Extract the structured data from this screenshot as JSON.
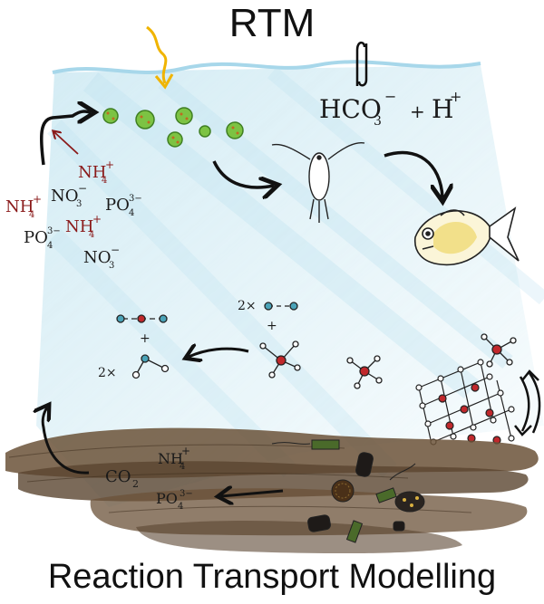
{
  "title": "RTM",
  "subtitle": "Reaction Transport Modelling",
  "labels": {
    "hco3": "HCO",
    "hco3_sub": "3",
    "hco3_sup": "−",
    "plus": "+",
    "h": "H",
    "h_sup": "+",
    "nh4": "NH",
    "sub4": "4",
    "sup_plus": "+",
    "no3": "NO",
    "sub3": "3",
    "sup_minus": "−",
    "po4": "PO",
    "sup3m": "3−",
    "co2": "CO",
    "sub2": "2",
    "two_x": "2×"
  },
  "colors": {
    "water": "#9fd4e6",
    "sediment": "#5a4530",
    "phyto": "#7cc343",
    "oxygen_atom": "#c0282c",
    "carbon_atom": "#4aa3b8",
    "arrow_sun": "#f0b400"
  }
}
